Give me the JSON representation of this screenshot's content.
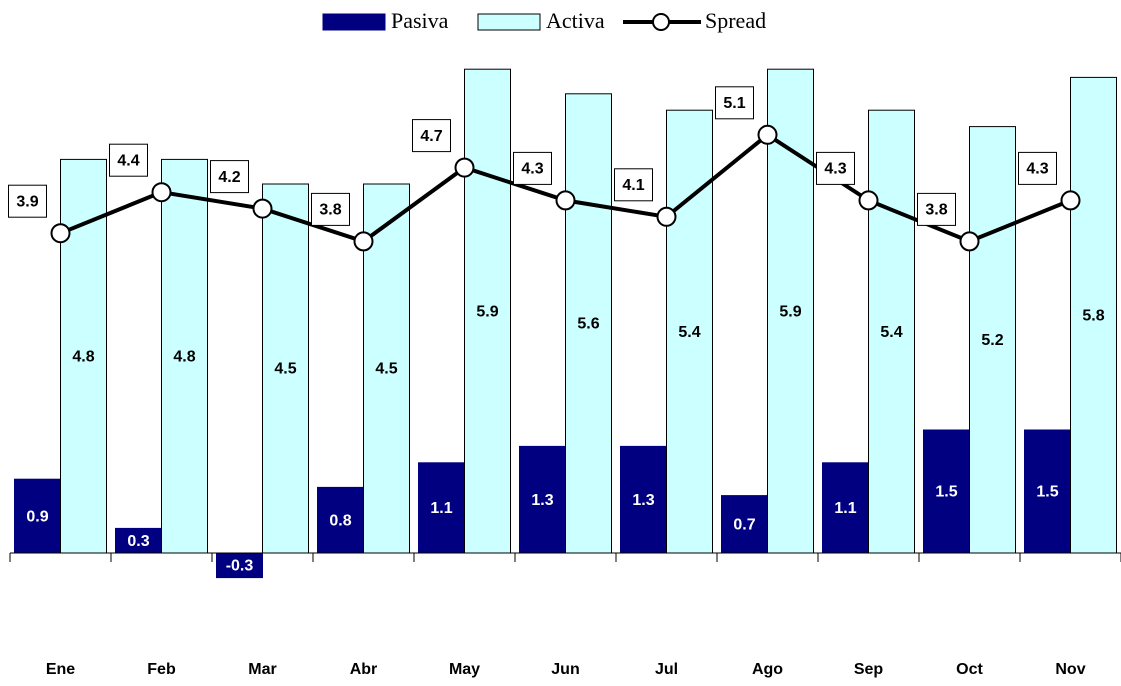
{
  "chart_data": {
    "type": "bar-line",
    "categories": [
      "Ene",
      "Feb",
      "Mar",
      "Abr",
      "May",
      "Jun",
      "Jul",
      "Ago",
      "Sep",
      "Oct",
      "Nov"
    ],
    "series": [
      {
        "name": "Pasiva",
        "type": "bar",
        "color": "#000080",
        "values": [
          0.9,
          0.3,
          -0.3,
          0.8,
          1.1,
          1.3,
          1.3,
          0.7,
          1.1,
          1.5,
          1.5
        ]
      },
      {
        "name": "Activa",
        "type": "bar",
        "color": "#ccffff",
        "values": [
          4.8,
          4.8,
          4.5,
          4.5,
          5.9,
          5.6,
          5.4,
          5.9,
          5.4,
          5.2,
          5.8
        ]
      },
      {
        "name": "Spread",
        "type": "line",
        "color": "#000000",
        "values": [
          3.9,
          4.4,
          4.2,
          3.8,
          4.7,
          4.3,
          4.1,
          5.1,
          4.3,
          3.8,
          4.3
        ]
      }
    ],
    "ylim": [
      -1,
      6
    ],
    "legend": "top"
  }
}
